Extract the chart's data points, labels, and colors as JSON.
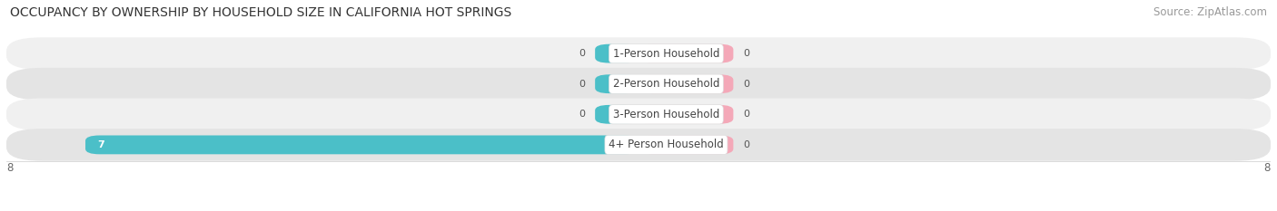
{
  "title": "OCCUPANCY BY OWNERSHIP BY HOUSEHOLD SIZE IN CALIFORNIA HOT SPRINGS",
  "source": "Source: ZipAtlas.com",
  "categories": [
    "1-Person Household",
    "2-Person Household",
    "3-Person Household",
    "4+ Person Household"
  ],
  "owner_values": [
    0,
    0,
    0,
    7
  ],
  "renter_values": [
    0,
    0,
    0,
    0
  ],
  "owner_color": "#4bbfc8",
  "renter_color": "#f4a8b8",
  "row_bg_colors": [
    "#f0f0f0",
    "#e4e4e4"
  ],
  "xlim_left": -8,
  "xlim_right": 8,
  "title_fontsize": 10,
  "source_fontsize": 8.5,
  "bar_height": 0.62,
  "background_color": "#ffffff",
  "label_color": "#444444",
  "value_color": "#555555",
  "zero_stub": 0.55,
  "renter_stub": 1.2
}
